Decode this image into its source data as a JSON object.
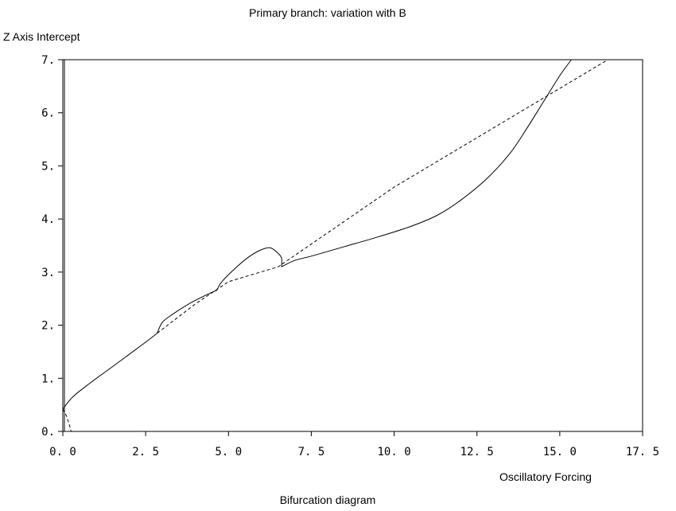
{
  "chart_data": {
    "type": "line",
    "title": "Primary branch: variation with B",
    "ylabel": "Z Axis Intercept",
    "xlabel": "Oscillatory Forcing",
    "caption": "Bifurcation diagram",
    "xlim": [
      0,
      17.5
    ],
    "ylim": [
      0,
      7
    ],
    "x_ticks": [
      "0. 0",
      "2. 5",
      "5. 0",
      "7. 5",
      "10. 0",
      "12. 5",
      "15. 0",
      "17. 5"
    ],
    "x_tick_values": [
      0,
      2.5,
      5,
      7.5,
      10,
      12.5,
      15,
      17.5
    ],
    "y_ticks": [
      "0.",
      "1.",
      "2.",
      "3.",
      "4.",
      "5.",
      "6.",
      "7."
    ],
    "y_tick_values": [
      0,
      1,
      2,
      3,
      4,
      5,
      6,
      7
    ],
    "series": [
      {
        "style": "solid",
        "points": [
          [
            0,
            0.42
          ],
          [
            0.3,
            0.65
          ],
          [
            0.8,
            0.9
          ],
          [
            1.5,
            1.22
          ],
          [
            2.0,
            1.45
          ],
          [
            2.5,
            1.68
          ],
          [
            2.85,
            1.85
          ]
        ]
      },
      {
        "style": "solid",
        "points": [
          [
            2.85,
            1.85
          ],
          [
            3.0,
            2.05
          ],
          [
            3.3,
            2.2
          ],
          [
            3.8,
            2.4
          ],
          [
            4.3,
            2.56
          ],
          [
            4.65,
            2.66
          ]
        ]
      },
      {
        "style": "solid",
        "points": [
          [
            4.65,
            2.66
          ],
          [
            4.8,
            2.82
          ],
          [
            5.2,
            3.07
          ],
          [
            5.6,
            3.28
          ],
          [
            5.95,
            3.41
          ],
          [
            6.25,
            3.46
          ],
          [
            6.45,
            3.38
          ],
          [
            6.6,
            3.27
          ],
          [
            6.6,
            3.1
          ]
        ]
      },
      {
        "style": "solid",
        "points": [
          [
            6.6,
            3.1
          ],
          [
            7.0,
            3.22
          ],
          [
            7.5,
            3.3
          ],
          [
            8.5,
            3.48
          ],
          [
            9.5,
            3.66
          ],
          [
            10.5,
            3.86
          ],
          [
            11.3,
            4.07
          ],
          [
            12.0,
            4.35
          ],
          [
            12.8,
            4.76
          ],
          [
            13.5,
            5.24
          ],
          [
            14.0,
            5.7
          ],
          [
            14.5,
            6.2
          ],
          [
            15.0,
            6.7
          ],
          [
            15.35,
            7.0
          ]
        ]
      },
      {
        "style": "dashed",
        "points": [
          [
            2.85,
            1.85
          ],
          [
            4.0,
            2.4
          ],
          [
            5.0,
            2.82
          ],
          [
            6.5,
            3.1
          ],
          [
            10.0,
            4.6
          ],
          [
            16.45,
            7.0
          ]
        ]
      },
      {
        "style": "dashed",
        "points": [
          [
            0,
            0.42
          ],
          [
            0.12,
            0.28
          ],
          [
            0.2,
            0.12
          ],
          [
            0.25,
            0.0
          ]
        ]
      }
    ],
    "grid": false,
    "legend": "none",
    "line_color": "#000000"
  }
}
